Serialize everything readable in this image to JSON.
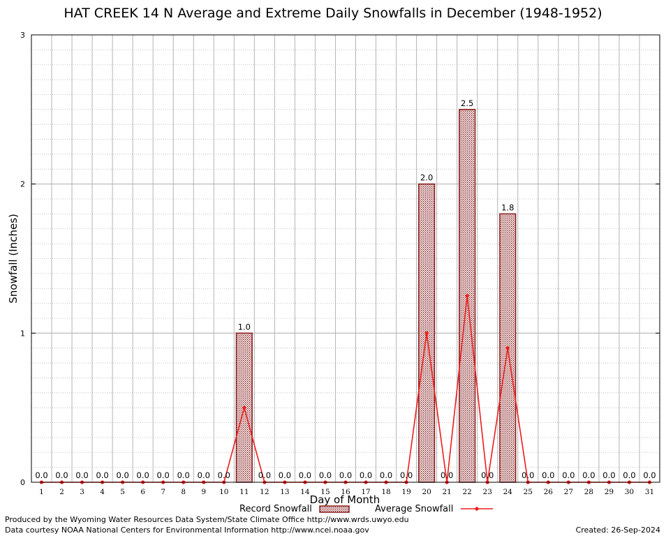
{
  "chart_data": {
    "type": "bar",
    "title": "HAT CREEK 14 N Average and Extreme Daily Snowfalls in December (1948-1952)",
    "xlabel": "Day of Month",
    "ylabel": "Snowfall (Inches)",
    "ylim": [
      0,
      3
    ],
    "y_ticks": [
      "0",
      "1",
      "2",
      "3"
    ],
    "x_ticks": [
      "1",
      "2",
      "3",
      "4",
      "5",
      "6",
      "7",
      "8",
      "9",
      "10",
      "11",
      "12",
      "13",
      "14",
      "15",
      "16",
      "17",
      "18",
      "19",
      "20",
      "21",
      "22",
      "23",
      "24",
      "25",
      "26",
      "27",
      "28",
      "29",
      "30",
      "31"
    ],
    "grid": true,
    "legend_position": "bottom",
    "series": [
      {
        "name": "Record Snowfall",
        "type": "bar",
        "color": "#8b1a1a",
        "values": [
          0.0,
          0.0,
          0.0,
          0.0,
          0.0,
          0.0,
          0.0,
          0.0,
          0.0,
          0.0,
          1.0,
          0.0,
          0.0,
          0.0,
          0.0,
          0.0,
          0.0,
          0.0,
          0.0,
          2.0,
          0.0,
          2.5,
          0.0,
          1.8,
          0.0,
          0.0,
          0.0,
          0.0,
          0.0,
          0.0,
          0.0
        ],
        "labels": [
          "0.0",
          "0.0",
          "0.0",
          "0.0",
          "0.0",
          "0.0",
          "0.0",
          "0.0",
          "0.0",
          "0.0",
          "1.0",
          "0.0",
          "0.0",
          "0.0",
          "0.0",
          "0.0",
          "0.0",
          "0.0",
          "0.0",
          "2.0",
          "0.0",
          "2.5",
          "0.0",
          "1.8",
          "0.0",
          "0.0",
          "0.0",
          "0.0",
          "0.0",
          "0.0",
          "0.0"
        ]
      },
      {
        "name": "Average Snowfall",
        "type": "line",
        "color": "#ee1c1c",
        "values": [
          0,
          0,
          0,
          0,
          0,
          0,
          0,
          0,
          0,
          0,
          0.5,
          0,
          0,
          0,
          0,
          0,
          0,
          0,
          0,
          1.0,
          0,
          1.25,
          0,
          0.9,
          0,
          0,
          0,
          0,
          0,
          0,
          0
        ]
      }
    ]
  },
  "footer": {
    "produced_by": "Produced by the Wyoming Water Resources Data System/State Climate Office http://www.wrds.uwyo.edu",
    "courtesy": "Data courtesy NOAA National Centers for Environmental Information http://www.ncei.noaa.gov",
    "created": "Created:  26-Sep-2024"
  }
}
